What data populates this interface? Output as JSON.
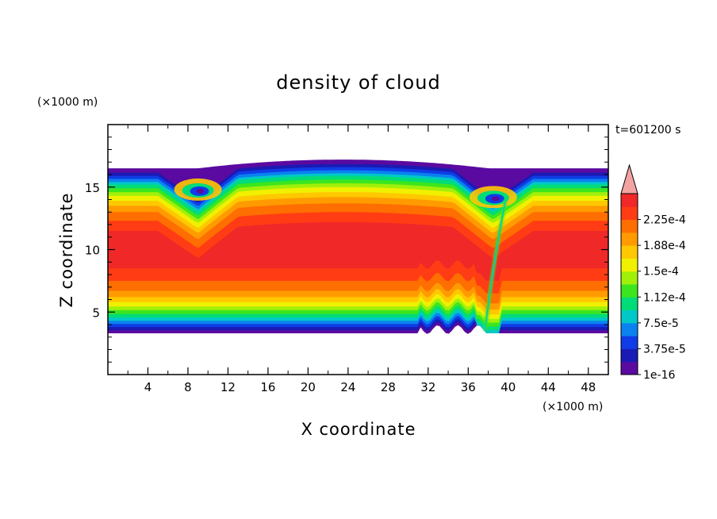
{
  "chart_data": {
    "type": "heatmap",
    "title": "density of cloud",
    "xlabel": "X coordinate",
    "ylabel": "Z coordinate",
    "x_unit": "(×1000 m)",
    "y_unit": "(×1000 m)",
    "time_label": "t=601200 s",
    "xlim": [
      0,
      50
    ],
    "ylim": [
      0,
      20
    ],
    "x_ticks": [
      4,
      8,
      12,
      16,
      20,
      24,
      28,
      32,
      36,
      40,
      44,
      48
    ],
    "y_ticks": [
      5,
      10,
      15
    ],
    "colorbar": {
      "labels": [
        "1e-16",
        "3.75e-5",
        "7.5e-5",
        "1.12e-4",
        "1.5e-4",
        "1.88e-4",
        "2.25e-4"
      ],
      "colors": [
        "#5a0aa0",
        "#1a1ab4",
        "#0f3ce6",
        "#0a82f0",
        "#00c8c8",
        "#00dc78",
        "#3ce61e",
        "#a0f00a",
        "#f0f000",
        "#ffc800",
        "#ff9b00",
        "#ff6e00",
        "#ff3c14",
        "#f02828"
      ],
      "overflow_color": "#f4a3a3"
    },
    "cloud_layer": {
      "z_bottom": 3.3,
      "z_top_edges": 16.5,
      "z_top_dome": 17.2,
      "dome_x_range": [
        9,
        38
      ],
      "dome_peak_x": 23.5,
      "vortices": [
        {
          "x": 9,
          "z": 14.8
        },
        {
          "x": 38.5,
          "z": 14.2
        }
      ],
      "updraft_x": 38
    }
  }
}
